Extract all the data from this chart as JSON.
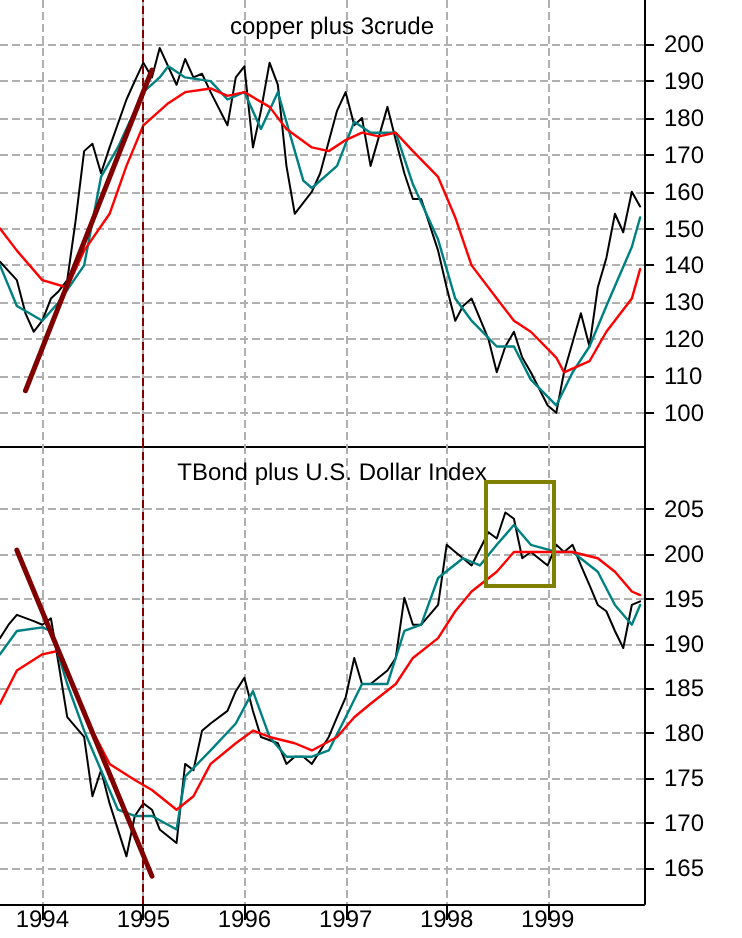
{
  "chart_data": [
    {
      "type": "line",
      "title": "copper plus 3crude",
      "xlim": [
        "1993-08",
        "1999-12-15"
      ],
      "xticks": [
        "1994",
        "1995",
        "1996",
        "1997",
        "1998",
        "1999"
      ],
      "ylim": [
        91,
        212
      ],
      "yticks": [
        100,
        110,
        120,
        130,
        140,
        150,
        160,
        170,
        180,
        190,
        200
      ],
      "grid": true,
      "tick_labels": "y",
      "ref_lines": [
        {
          "axis": "x",
          "value": "1995-01",
          "color": "#800000",
          "line_style": "dashed"
        }
      ],
      "series": [
        {
          "color": "#000000",
          "x": [
            "1993-08",
            "1993-10",
            "1993-11",
            "1993-12",
            "1994-01",
            "1994-02",
            "1994-03",
            "1994-04",
            "1994-05",
            "1994-06",
            "1994-07",
            "1994-08",
            "1994-09",
            "1994-11",
            "1994-12",
            "1995-01",
            "1995-02",
            "1995-03",
            "1995-05",
            "1995-06",
            "1995-07",
            "1995-08",
            "1995-09",
            "1995-11",
            "1995-12",
            "1996-01",
            "1996-02",
            "1996-03",
            "1996-04",
            "1996-05",
            "1996-06",
            "1996-07",
            "1996-09",
            "1996-10",
            "1996-12",
            "1997-01",
            "1997-02",
            "1997-03",
            "1997-04",
            "1997-06",
            "1997-07",
            "1997-08",
            "1997-09",
            "1997-10",
            "1997-12",
            "1998-01",
            "1998-02",
            "1998-03",
            "1998-04",
            "1998-06",
            "1998-07",
            "1998-08",
            "1998-09",
            "1998-10",
            "1998-11",
            "1999-01",
            "1999-02",
            "1999-03",
            "1999-05",
            "1999-06",
            "1999-07",
            "1999-08",
            "1999-09",
            "1999-10",
            "1999-11",
            "1999-12"
          ],
          "values": [
            141,
            136,
            127,
            122,
            125,
            131,
            133,
            136,
            152,
            171,
            173,
            165,
            172,
            185,
            190,
            195,
            191,
            199,
            189,
            196,
            191,
            192,
            187,
            178,
            191,
            194,
            172,
            182,
            195,
            189,
            167,
            154,
            160,
            165,
            182,
            187,
            178,
            180,
            167,
            183,
            174,
            165,
            158,
            158,
            144,
            134,
            125,
            129,
            131,
            120,
            111,
            118,
            122,
            115,
            111,
            102,
            100,
            111,
            127,
            118,
            134,
            142,
            154,
            149,
            160,
            156
          ]
        },
        {
          "color": "#008080",
          "x": [
            "1993-08",
            "1993-10",
            "1994-01",
            "1994-03",
            "1994-06",
            "1994-08",
            "1994-10",
            "1995-01",
            "1995-03",
            "1995-04",
            "1995-06",
            "1995-09",
            "1995-11",
            "1996-01",
            "1996-03",
            "1996-05",
            "1996-08",
            "1996-09",
            "1996-12",
            "1997-02",
            "1997-04",
            "1997-07",
            "1997-09",
            "1997-12",
            "1998-02",
            "1998-04",
            "1998-07",
            "1998-09",
            "1998-11",
            "1999-02",
            "1999-04",
            "1999-06",
            "1999-08",
            "1999-11",
            "1999-12"
          ],
          "values": [
            140,
            129,
            125,
            130,
            140,
            164,
            172,
            187,
            191,
            194,
            191,
            190,
            185,
            187,
            177,
            187,
            163,
            161,
            167,
            179,
            176,
            176,
            162,
            147,
            131,
            125,
            118,
            118,
            109,
            102,
            111,
            118,
            129,
            145,
            153
          ]
        },
        {
          "color": "#ff0000",
          "x": [
            "1993-08",
            "1993-10",
            "1994-01",
            "1994-04",
            "1994-06",
            "1994-09",
            "1994-11",
            "1995-01",
            "1995-04",
            "1995-06",
            "1995-09",
            "1995-11",
            "1996-01",
            "1996-04",
            "1996-06",
            "1996-09",
            "1996-11",
            "1997-01",
            "1997-03",
            "1997-05",
            "1997-07",
            "1997-09",
            "1997-12",
            "1998-02",
            "1998-04",
            "1998-07",
            "1998-09",
            "1998-11",
            "1999-02",
            "1999-03",
            "1999-06",
            "1999-08",
            "1999-11",
            "1999-12"
          ],
          "values": [
            150,
            144,
            136,
            134,
            144,
            154,
            167,
            178,
            184,
            187,
            188,
            186,
            187,
            183,
            177,
            172,
            171,
            174,
            176,
            175,
            176,
            171,
            164,
            153,
            140,
            131,
            125,
            122,
            115,
            111,
            114,
            122,
            131,
            139
          ]
        },
        {
          "color": "#800000",
          "x": [
            "1993-11",
            "1995-02"
          ],
          "values": [
            106,
            193
          ]
        }
      ]
    },
    {
      "type": "line",
      "title": "TBond plus U.S. Dollar Index",
      "xlim": [
        "1993-08",
        "1999-12-15"
      ],
      "xticks": [
        "1994",
        "1995",
        "1996",
        "1997",
        "1998",
        "1999"
      ],
      "ylim": [
        161,
        212
      ],
      "yticks": [
        165,
        170,
        175,
        180,
        185,
        190,
        195,
        200,
        205
      ],
      "grid": true,
      "ref_lines": [
        {
          "axis": "x",
          "value": "1995-01",
          "color": "#800000",
          "line_style": "dashed"
        }
      ],
      "series": [
        {
          "color": "#000000",
          "x": [
            "1993-08",
            "1993-09",
            "1993-10",
            "1993-12",
            "1994-01",
            "1994-02",
            "1994-03",
            "1994-04",
            "1994-06",
            "1994-07",
            "1994-08",
            "1994-09",
            "1994-11",
            "1994-12",
            "1995-01",
            "1995-02",
            "1995-03",
            "1995-05",
            "1995-06",
            "1995-07",
            "1995-08",
            "1995-09",
            "1995-11",
            "1995-12",
            "1996-01",
            "1996-02",
            "1996-03",
            "1996-05",
            "1996-06",
            "1996-07",
            "1996-08",
            "1996-09",
            "1996-11",
            "1996-12",
            "1997-01",
            "1997-02",
            "1997-03",
            "1997-04",
            "1997-06",
            "1997-07",
            "1997-08",
            "1997-09",
            "1997-10",
            "1997-12",
            "1998-01",
            "1998-02",
            "1998-03",
            "1998-04",
            "1998-06",
            "1998-07",
            "1998-08",
            "1998-09",
            "1998-10",
            "1998-11",
            "1999-01",
            "1999-02",
            "1999-03",
            "1999-04",
            "1999-05",
            "1999-06",
            "1999-07",
            "1999-08",
            "1999-09",
            "1999-10",
            "1999-11",
            "1999-12"
          ],
          "values": [
            190.6,
            192.1,
            193.2,
            192.5,
            192.1,
            192.8,
            187.7,
            181.8,
            179.6,
            173,
            175.9,
            172.2,
            166.3,
            170.8,
            172.2,
            171.5,
            169.3,
            167.8,
            176.6,
            175.9,
            180.3,
            181.1,
            182.5,
            184.7,
            186.2,
            182.5,
            179.6,
            178.9,
            176.6,
            177.4,
            177.4,
            176.6,
            179.6,
            181.8,
            184,
            188.4,
            185.5,
            185.5,
            187,
            188.4,
            195.1,
            192.1,
            192.1,
            194.3,
            201,
            200.2,
            199.5,
            198.7,
            202.4,
            201.7,
            204.6,
            203.9,
            199.5,
            200.2,
            198.7,
            201,
            200.2,
            201,
            198.7,
            196.5,
            194.3,
            193.6,
            191.4,
            189.5,
            194.3,
            194.7
          ]
        },
        {
          "color": "#008080",
          "x": [
            "1993-08",
            "1993-10",
            "1994-01",
            "1994-02",
            "1994-04",
            "1994-06",
            "1994-08",
            "1994-10",
            "1994-12",
            "1995-02",
            "1995-05",
            "1995-06",
            "1995-09",
            "1995-12",
            "1996-02",
            "1996-04",
            "1996-06",
            "1996-09",
            "1996-11",
            "1997-01",
            "1997-03",
            "1997-06",
            "1997-08",
            "1997-10",
            "1997-12",
            "1998-03",
            "1998-05",
            "1998-07",
            "1998-09",
            "1998-11",
            "1999-02",
            "1999-04",
            "1999-07",
            "1999-09",
            "1999-11",
            "1999-12"
          ],
          "values": [
            188.8,
            191.4,
            191.8,
            191.4,
            185.5,
            180.3,
            175.9,
            171.5,
            170.8,
            170.8,
            169.3,
            175.2,
            178.1,
            181.1,
            184.7,
            179.6,
            177.4,
            177.4,
            178.1,
            181.8,
            185.5,
            185.5,
            191.4,
            192.1,
            197.3,
            199.5,
            198.7,
            201,
            203.2,
            201,
            200.2,
            200.2,
            198,
            194.3,
            192.1,
            194.3
          ]
        },
        {
          "color": "#ff0000",
          "x": [
            "1993-08",
            "1993-10",
            "1994-01",
            "1994-03",
            "1994-05",
            "1994-07",
            "1994-09",
            "1994-12",
            "1995-02",
            "1995-05",
            "1995-07",
            "1995-09",
            "1995-12",
            "1996-02",
            "1996-04",
            "1996-07",
            "1996-09",
            "1996-12",
            "1997-02",
            "1997-04",
            "1997-07",
            "1997-09",
            "1997-12",
            "1998-02",
            "1998-04",
            "1998-07",
            "1998-09",
            "1998-11",
            "1999-02",
            "1999-04",
            "1999-07",
            "1999-09",
            "1999-11",
            "1999-12"
          ],
          "values": [
            183.3,
            187,
            188.8,
            189.2,
            184.7,
            180.3,
            176.6,
            174.8,
            173.7,
            171.5,
            173,
            176.6,
            178.9,
            180.3,
            179.6,
            178.9,
            178.1,
            179.6,
            181.8,
            183.3,
            185.5,
            188.4,
            190.6,
            193.6,
            195.8,
            198,
            200.2,
            200.2,
            200.2,
            200.2,
            199.5,
            198,
            195.8,
            195.4
          ]
        },
        {
          "color": "#800000",
          "x": [
            "1993-10",
            "1995-02"
          ],
          "values": [
            200.4,
            164.1
          ]
        }
      ]
    }
  ]
}
